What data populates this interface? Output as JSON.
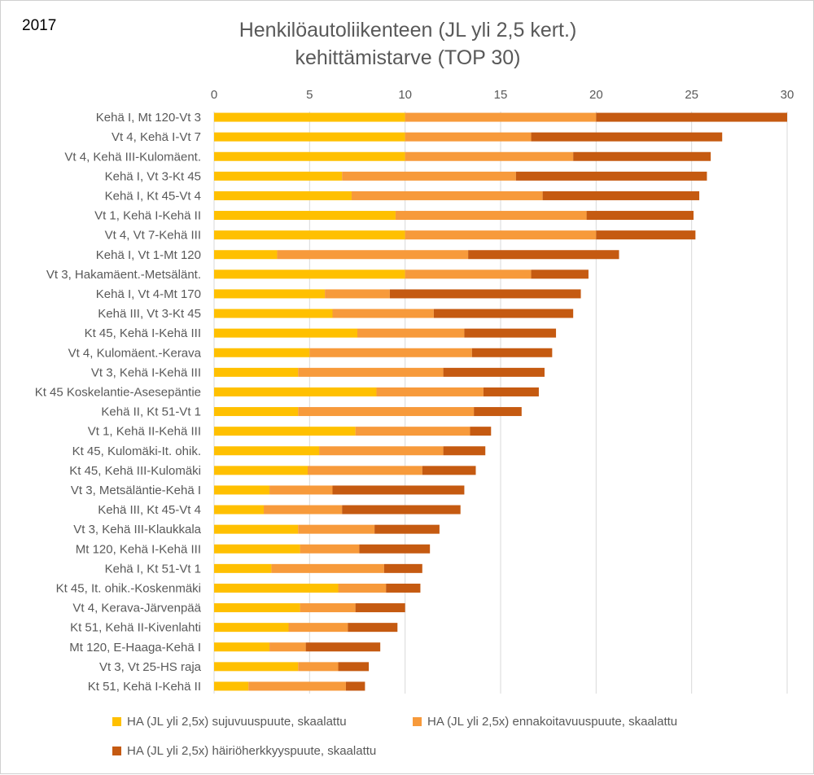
{
  "year_label": "2017",
  "title_line1": "Henkilöautoliikenteen (JL yli 2,5 kert.)",
  "title_line2": "kehittämistarve (TOP 30)",
  "colors": {
    "series1": "#FFC000",
    "series2": "#F79A3B",
    "series3": "#C55A11",
    "axis_text": "#595959",
    "grid": "#d9d9d9"
  },
  "chart_data": {
    "type": "bar",
    "orientation": "horizontal",
    "stacked": true,
    "title": "Henkilöautoliikenteen (JL yli 2,5 kert.) kehittämistarve (TOP 30)",
    "xlim": [
      0,
      30
    ],
    "x_ticks": [
      "0",
      "5",
      "10",
      "15",
      "20",
      "25",
      "30"
    ],
    "x_tick_values": [
      0,
      5,
      10,
      15,
      20,
      25,
      30
    ],
    "grid": true,
    "legend_position": "bottom",
    "categories": [
      "Kehä I, Mt 120-Vt 3",
      "Vt 4, Kehä I-Vt 7",
      "Vt 4, Kehä III-Kulomäent.",
      "Kehä I, Vt 3-Kt 45",
      "Kehä I, Kt 45-Vt 4",
      "Vt 1, Kehä I-Kehä II",
      "Vt 4, Vt 7-Kehä III",
      "Kehä I, Vt 1-Mt 120",
      "Vt 3, Hakamäent.-Metsälänt.",
      "Kehä I, Vt 4-Mt 170",
      "Kehä III, Vt 3-Kt 45",
      "Kt 45, Kehä I-Kehä III",
      "Vt 4, Kulomäent.-Kerava",
      "Vt 3, Kehä I-Kehä III",
      "Kt 45 Koskelantie-Asesepäntie",
      "Kehä II, Kt 51-Vt 1",
      "Vt 1, Kehä II-Kehä III",
      "Kt 45, Kulomäki-It. ohik.",
      "Kt 45, Kehä III-Kulomäki",
      "Vt 3, Metsäläntie-Kehä I",
      "Kehä III, Kt 45-Vt 4",
      "Vt 3, Kehä III-Klaukkala",
      "Mt 120, Kehä I-Kehä III",
      "Kehä I, Kt 51-Vt 1",
      "Kt 45, It. ohik.-Koskenmäki",
      "Vt 4, Kerava-Järvenpää",
      "Kt 51, Kehä II-Kivenlahti",
      "Mt 120, E-Haaga-Kehä I",
      "Vt 3, Vt 25-HS raja",
      "Kt 51, Kehä I-Kehä II"
    ],
    "series": [
      {
        "name": "HA (JL yli 2,5x)  sujuvuuspuute, skaalattu",
        "values": [
          10.0,
          10.0,
          10.0,
          6.7,
          7.2,
          9.5,
          10.0,
          3.3,
          10.0,
          5.8,
          6.2,
          7.5,
          5.0,
          4.4,
          8.5,
          4.4,
          7.4,
          5.5,
          4.9,
          2.9,
          2.6,
          4.4,
          4.5,
          3.0,
          6.5,
          4.5,
          3.9,
          2.9,
          4.4,
          1.8
        ]
      },
      {
        "name": "HA (JL yli 2,5x) ennakoitavuuspuute, skaalattu",
        "values": [
          10.0,
          6.6,
          8.8,
          9.1,
          10.0,
          10.0,
          10.0,
          10.0,
          6.6,
          3.4,
          5.3,
          5.6,
          8.5,
          7.6,
          5.6,
          9.2,
          6.0,
          6.5,
          6.0,
          3.3,
          4.1,
          4.0,
          3.1,
          5.9,
          2.5,
          2.9,
          3.1,
          1.9,
          2.1,
          5.1
        ]
      },
      {
        "name": "HA (JL yli 2,5x) häiriöherkkyyspuute, skaalattu",
        "values": [
          10.0,
          10.0,
          7.2,
          10.0,
          8.2,
          5.6,
          5.2,
          7.9,
          3.0,
          10.0,
          7.3,
          4.8,
          4.2,
          5.3,
          2.9,
          2.5,
          1.1,
          2.2,
          2.8,
          6.9,
          6.2,
          3.4,
          3.7,
          2.0,
          1.8,
          2.6,
          2.6,
          3.9,
          1.6,
          1.0
        ]
      }
    ]
  }
}
